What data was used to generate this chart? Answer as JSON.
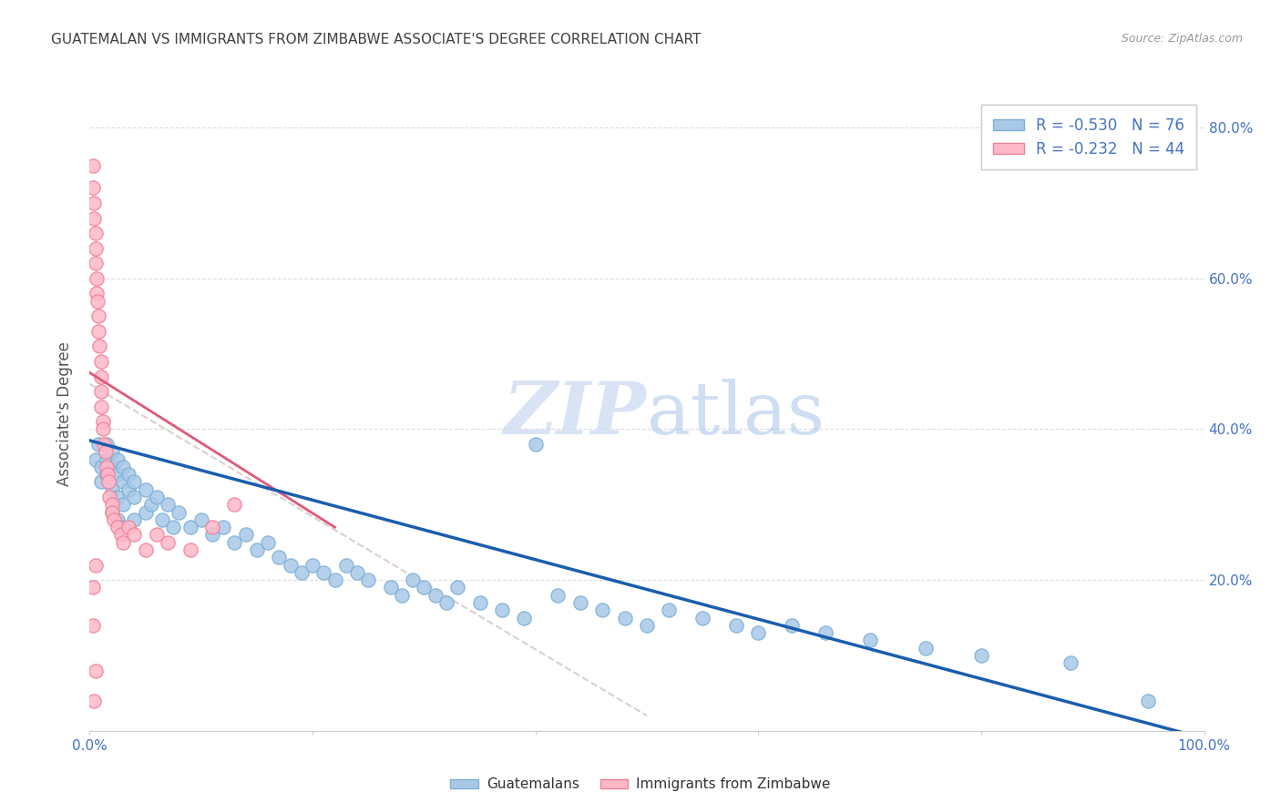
{
  "title": "GUATEMALAN VS IMMIGRANTS FROM ZIMBABWE ASSOCIATE'S DEGREE CORRELATION CHART",
  "source": "Source: ZipAtlas.com",
  "ylabel": "Associate's Degree",
  "xlim": [
    0.0,
    1.0
  ],
  "ylim": [
    0.0,
    0.84
  ],
  "xticks": [
    0.0,
    0.2,
    0.4,
    0.6,
    0.8,
    1.0
  ],
  "xtick_labels": [
    "0.0%",
    "",
    "",
    "",
    "",
    "100.0%"
  ],
  "yticks": [
    0.0,
    0.2,
    0.4,
    0.6,
    0.8
  ],
  "ytick_labels_right": [
    "",
    "20.0%",
    "40.0%",
    "60.0%",
    "80.0%"
  ],
  "blue_color": "#A8C8E8",
  "blue_edge_color": "#7EB0D5",
  "blue_line_color": "#1A5DAD",
  "pink_color": "#FFB8C8",
  "pink_edge_color": "#F08098",
  "pink_line_color": "#E05878",
  "gray_line_color": "#CCBBBB",
  "legend_text_color": "#4472C4",
  "title_color": "#404040",
  "source_color": "#999999",
  "axis_label_color": "#555555",
  "tick_color": "#4472C4",
  "grid_color": "#DDDDDD",
  "watermark_color": "#C8D8F0",
  "blue_scatter_x": [
    0.005,
    0.008,
    0.01,
    0.01,
    0.015,
    0.015,
    0.015,
    0.02,
    0.02,
    0.02,
    0.02,
    0.025,
    0.025,
    0.025,
    0.025,
    0.03,
    0.03,
    0.03,
    0.03,
    0.035,
    0.035,
    0.04,
    0.04,
    0.04,
    0.05,
    0.05,
    0.055,
    0.06,
    0.065,
    0.07,
    0.075,
    0.08,
    0.09,
    0.1,
    0.11,
    0.12,
    0.13,
    0.14,
    0.15,
    0.16,
    0.17,
    0.18,
    0.19,
    0.2,
    0.21,
    0.22,
    0.23,
    0.24,
    0.25,
    0.27,
    0.28,
    0.29,
    0.3,
    0.31,
    0.32,
    0.33,
    0.35,
    0.37,
    0.39,
    0.4,
    0.42,
    0.44,
    0.46,
    0.48,
    0.5,
    0.52,
    0.55,
    0.58,
    0.6,
    0.63,
    0.66,
    0.7,
    0.75,
    0.8,
    0.88,
    0.95
  ],
  "blue_scatter_y": [
    0.36,
    0.38,
    0.35,
    0.33,
    0.38,
    0.36,
    0.34,
    0.37,
    0.35,
    0.32,
    0.29,
    0.36,
    0.34,
    0.31,
    0.28,
    0.35,
    0.33,
    0.3,
    0.27,
    0.34,
    0.32,
    0.33,
    0.31,
    0.28,
    0.32,
    0.29,
    0.3,
    0.31,
    0.28,
    0.3,
    0.27,
    0.29,
    0.27,
    0.28,
    0.26,
    0.27,
    0.25,
    0.26,
    0.24,
    0.25,
    0.23,
    0.22,
    0.21,
    0.22,
    0.21,
    0.2,
    0.22,
    0.21,
    0.2,
    0.19,
    0.18,
    0.2,
    0.19,
    0.18,
    0.17,
    0.19,
    0.17,
    0.16,
    0.15,
    0.38,
    0.18,
    0.17,
    0.16,
    0.15,
    0.14,
    0.16,
    0.15,
    0.14,
    0.13,
    0.14,
    0.13,
    0.12,
    0.11,
    0.1,
    0.09,
    0.04
  ],
  "pink_scatter_x": [
    0.003,
    0.003,
    0.004,
    0.004,
    0.005,
    0.005,
    0.005,
    0.005,
    0.006,
    0.006,
    0.007,
    0.008,
    0.008,
    0.009,
    0.01,
    0.01,
    0.01,
    0.01,
    0.012,
    0.012,
    0.013,
    0.014,
    0.015,
    0.016,
    0.017,
    0.018,
    0.02,
    0.02,
    0.022,
    0.025,
    0.028,
    0.03,
    0.035,
    0.04,
    0.05,
    0.06,
    0.07,
    0.09,
    0.11,
    0.13,
    0.003,
    0.003,
    0.004,
    0.005
  ],
  "pink_scatter_y": [
    0.75,
    0.72,
    0.7,
    0.68,
    0.66,
    0.64,
    0.62,
    0.08,
    0.6,
    0.58,
    0.57,
    0.55,
    0.53,
    0.51,
    0.49,
    0.47,
    0.45,
    0.43,
    0.41,
    0.4,
    0.38,
    0.37,
    0.35,
    0.34,
    0.33,
    0.31,
    0.3,
    0.29,
    0.28,
    0.27,
    0.26,
    0.25,
    0.27,
    0.26,
    0.24,
    0.26,
    0.25,
    0.24,
    0.27,
    0.3,
    0.19,
    0.14,
    0.04,
    0.22
  ],
  "blue_trend_x": [
    0.0,
    1.0
  ],
  "blue_trend_y": [
    0.385,
    -0.01
  ],
  "pink_trend_x": [
    0.0,
    0.22
  ],
  "pink_trend_y": [
    0.475,
    0.27
  ],
  "gray_trend_x": [
    0.0,
    0.5
  ],
  "gray_trend_y": [
    0.46,
    0.02
  ]
}
